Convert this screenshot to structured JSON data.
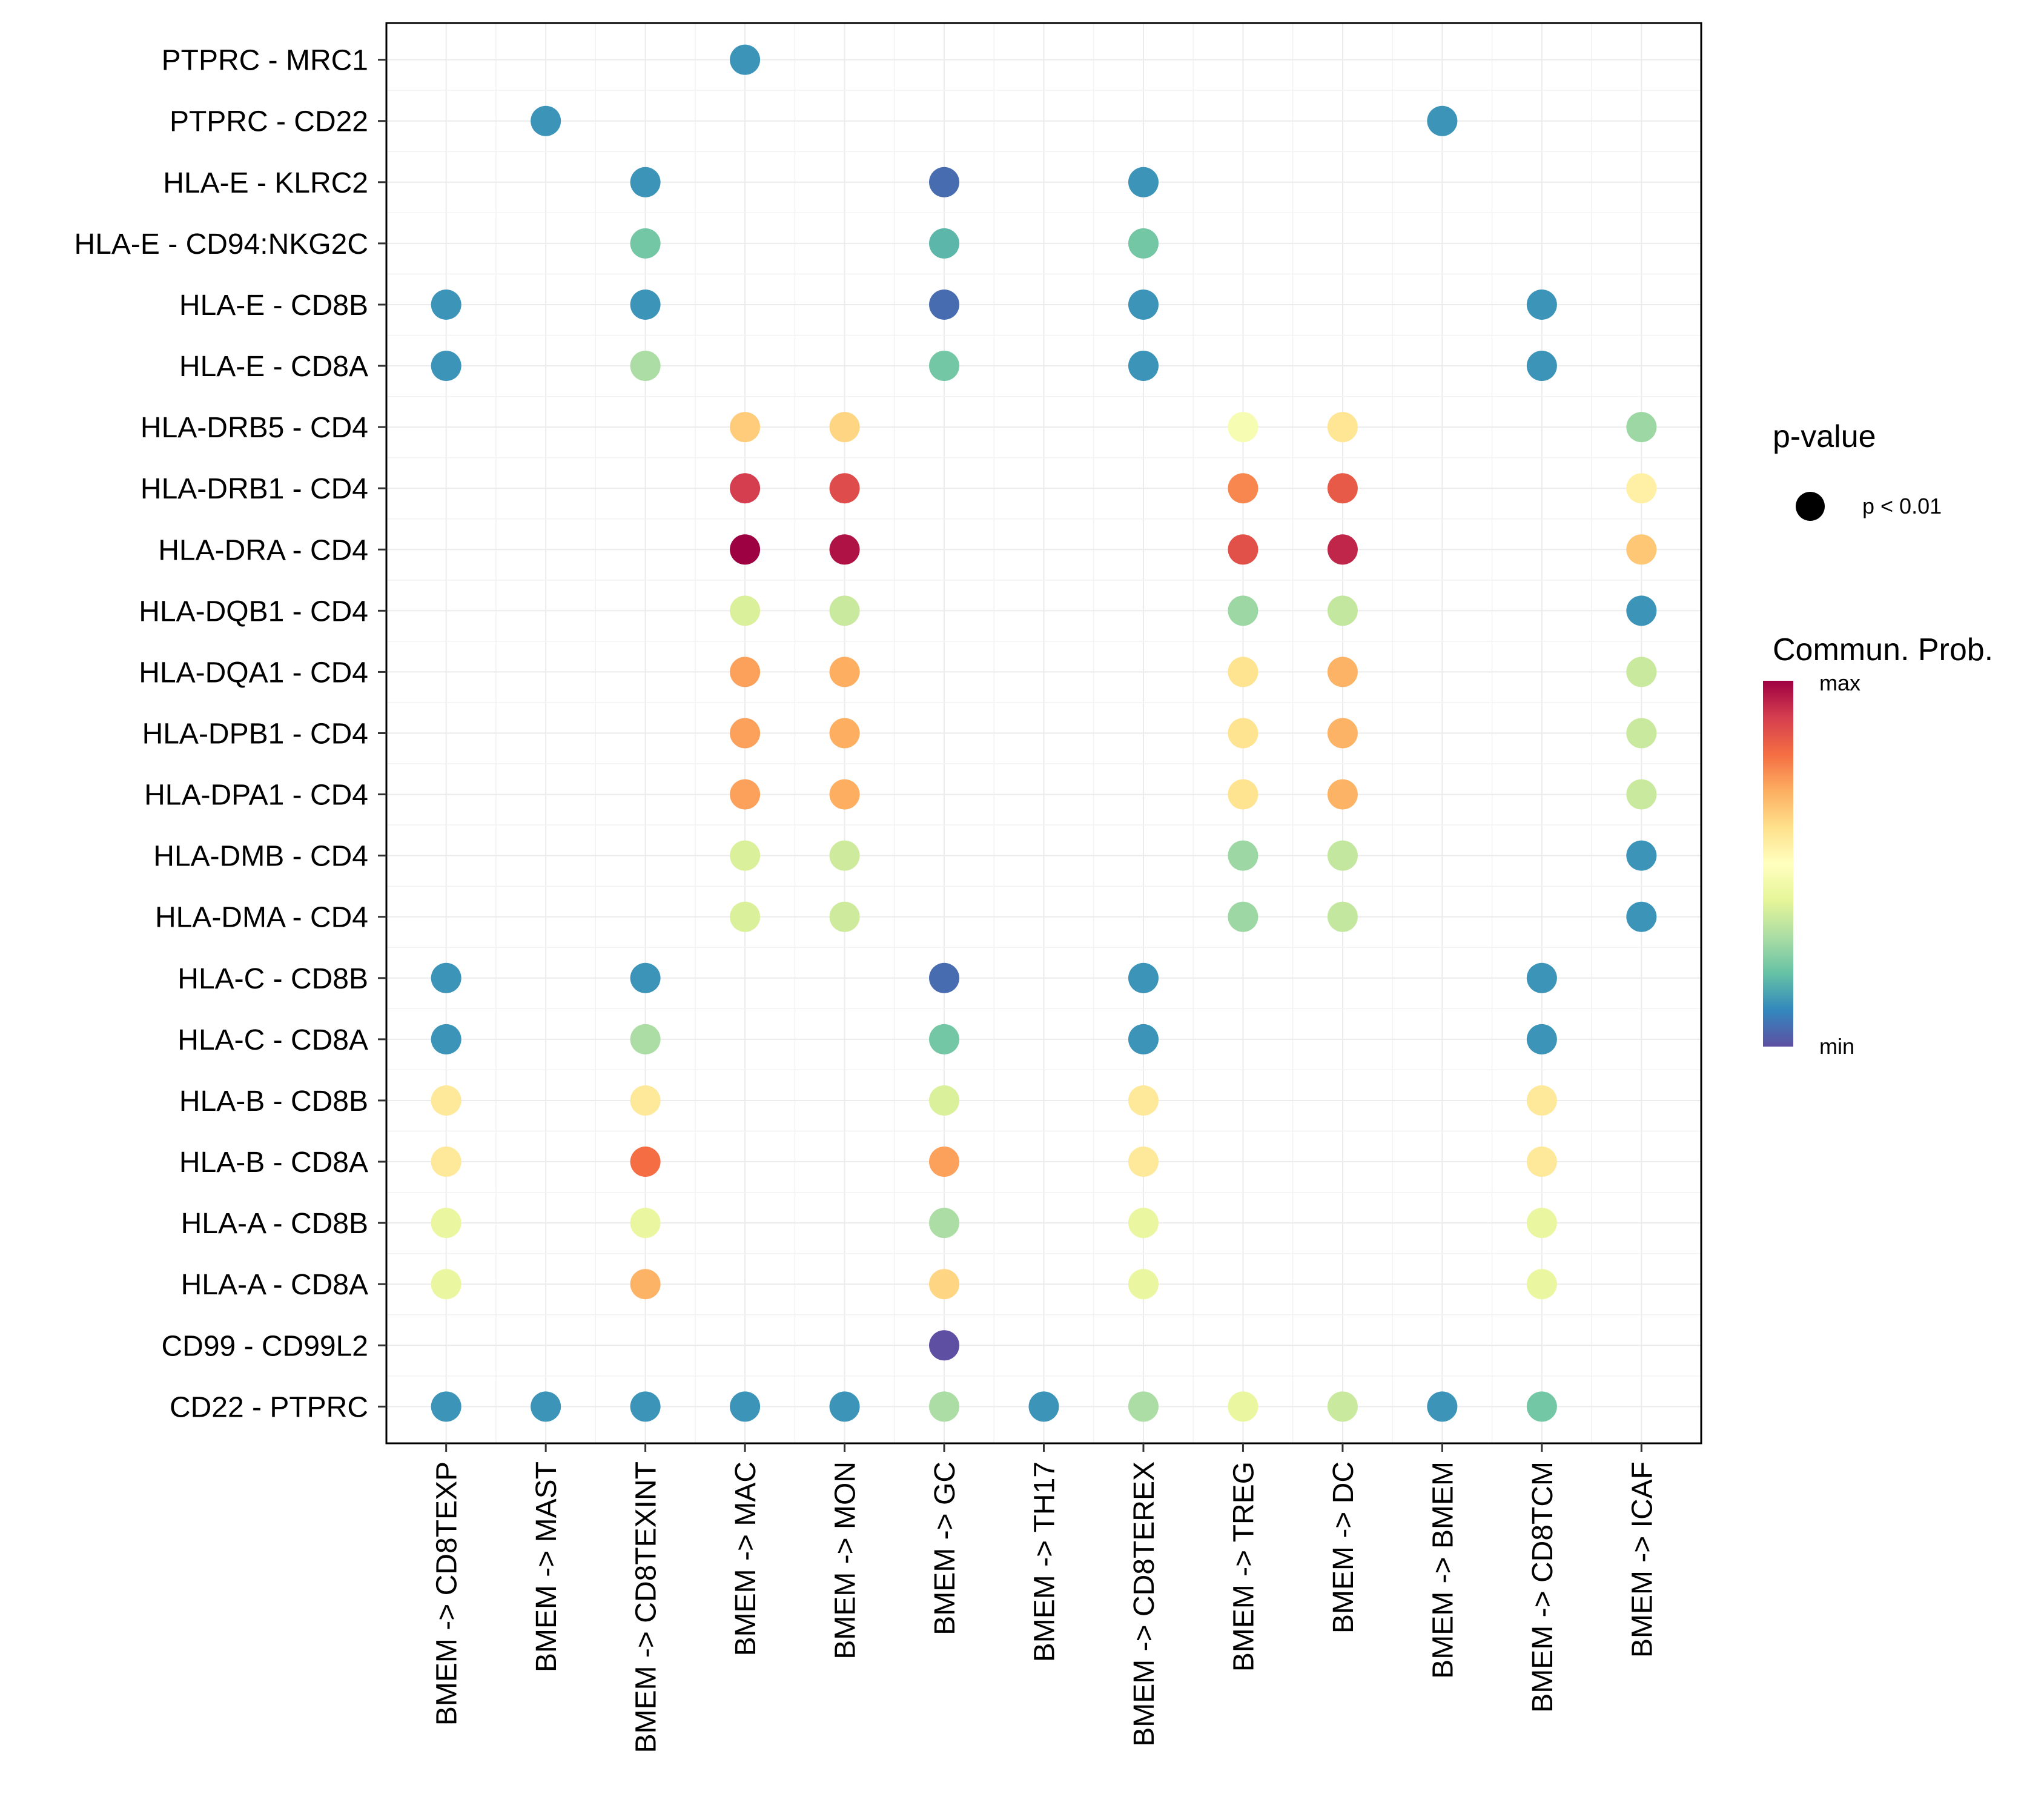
{
  "chart_data": {
    "type": "dotplot",
    "title": "",
    "xlabel": "",
    "ylabel": "",
    "x_categories": [
      "BMEM -> CD8TEXP",
      "BMEM -> MAST",
      "BMEM -> CD8TEXINT",
      "BMEM -> MAC",
      "BMEM -> MON",
      "BMEM -> GC",
      "BMEM -> TH17",
      "BMEM -> CD8TEREX",
      "BMEM -> TREG",
      "BMEM -> DC",
      "BMEM -> BMEM",
      "BMEM -> CD8TCM",
      "BMEM -> ICAF"
    ],
    "y_categories": [
      "PTPRC - MRC1",
      "PTPRC - CD22",
      "HLA-E - KLRC2",
      "HLA-E - CD94:NKG2C",
      "HLA-E - CD8B",
      "HLA-E - CD8A",
      "HLA-DRB5 - CD4",
      "HLA-DRB1 - CD4",
      "HLA-DRA - CD4",
      "HLA-DQB1 - CD4",
      "HLA-DQA1 - CD4",
      "HLA-DPB1 - CD4",
      "HLA-DPA1 - CD4",
      "HLA-DMB - CD4",
      "HLA-DMA - CD4",
      "HLA-C - CD8B",
      "HLA-C - CD8A",
      "HLA-B - CD8B",
      "HLA-B - CD8A",
      "HLA-A - CD8B",
      "HLA-A - CD8A",
      "CD99 - CD99L2",
      "CD22 - PTPRC"
    ],
    "value_scale": "normalized communication probability (0 = min, 1 = max)",
    "points": [
      {
        "y": "PTPRC - MRC1",
        "x": "BMEM -> MAC",
        "value": 0.12
      },
      {
        "y": "PTPRC - CD22",
        "x": "BMEM -> MAST",
        "value": 0.12
      },
      {
        "y": "PTPRC - CD22",
        "x": "BMEM -> BMEM",
        "value": 0.12
      },
      {
        "y": "HLA-E - KLRC2",
        "x": "BMEM -> CD8TEXINT",
        "value": 0.12
      },
      {
        "y": "HLA-E - KLRC2",
        "x": "BMEM -> GC",
        "value": 0.05
      },
      {
        "y": "HLA-E - KLRC2",
        "x": "BMEM -> CD8TEREX",
        "value": 0.12
      },
      {
        "y": "HLA-E - CD94:NKG2C",
        "x": "BMEM -> CD8TEXINT",
        "value": 0.22
      },
      {
        "y": "HLA-E - CD94:NKG2C",
        "x": "BMEM -> GC",
        "value": 0.18
      },
      {
        "y": "HLA-E - CD94:NKG2C",
        "x": "BMEM -> CD8TEREX",
        "value": 0.22
      },
      {
        "y": "HLA-E - CD8B",
        "x": "BMEM -> CD8TEXP",
        "value": 0.12
      },
      {
        "y": "HLA-E - CD8B",
        "x": "BMEM -> CD8TEXINT",
        "value": 0.12
      },
      {
        "y": "HLA-E - CD8B",
        "x": "BMEM -> GC",
        "value": 0.05
      },
      {
        "y": "HLA-E - CD8B",
        "x": "BMEM -> CD8TEREX",
        "value": 0.12
      },
      {
        "y": "HLA-E - CD8B",
        "x": "BMEM -> CD8TCM",
        "value": 0.12
      },
      {
        "y": "HLA-E - CD8A",
        "x": "BMEM -> CD8TEXP",
        "value": 0.12
      },
      {
        "y": "HLA-E - CD8A",
        "x": "BMEM -> CD8TEXINT",
        "value": 0.3
      },
      {
        "y": "HLA-E - CD8A",
        "x": "BMEM -> GC",
        "value": 0.22
      },
      {
        "y": "HLA-E - CD8A",
        "x": "BMEM -> CD8TEREX",
        "value": 0.12
      },
      {
        "y": "HLA-E - CD8A",
        "x": "BMEM -> CD8TCM",
        "value": 0.12
      },
      {
        "y": "HLA-DRB5 - CD4",
        "x": "BMEM -> MAC",
        "value": 0.64
      },
      {
        "y": "HLA-DRB5 - CD4",
        "x": "BMEM -> MON",
        "value": 0.62
      },
      {
        "y": "HLA-DRB5 - CD4",
        "x": "BMEM -> TREG",
        "value": 0.47
      },
      {
        "y": "HLA-DRB5 - CD4",
        "x": "BMEM -> DC",
        "value": 0.58
      },
      {
        "y": "HLA-DRB5 - CD4",
        "x": "BMEM -> ICAF",
        "value": 0.28
      },
      {
        "y": "HLA-DRB1 - CD4",
        "x": "BMEM -> MAC",
        "value": 0.9
      },
      {
        "y": "HLA-DRB1 - CD4",
        "x": "BMEM -> MON",
        "value": 0.87
      },
      {
        "y": "HLA-DRB1 - CD4",
        "x": "BMEM -> TREG",
        "value": 0.76
      },
      {
        "y": "HLA-DRB1 - CD4",
        "x": "BMEM -> DC",
        "value": 0.84
      },
      {
        "y": "HLA-DRB1 - CD4",
        "x": "BMEM -> ICAF",
        "value": 0.55
      },
      {
        "y": "HLA-DRA - CD4",
        "x": "BMEM -> MAC",
        "value": 1.0
      },
      {
        "y": "HLA-DRA - CD4",
        "x": "BMEM -> MON",
        "value": 0.97
      },
      {
        "y": "HLA-DRA - CD4",
        "x": "BMEM -> TREG",
        "value": 0.86
      },
      {
        "y": "HLA-DRA - CD4",
        "x": "BMEM -> DC",
        "value": 0.94
      },
      {
        "y": "HLA-DRA - CD4",
        "x": "BMEM -> ICAF",
        "value": 0.65
      },
      {
        "y": "HLA-DQB1 - CD4",
        "x": "BMEM -> MAC",
        "value": 0.38
      },
      {
        "y": "HLA-DQB1 - CD4",
        "x": "BMEM -> MON",
        "value": 0.35
      },
      {
        "y": "HLA-DQB1 - CD4",
        "x": "BMEM -> TREG",
        "value": 0.28
      },
      {
        "y": "HLA-DQB1 - CD4",
        "x": "BMEM -> DC",
        "value": 0.34
      },
      {
        "y": "HLA-DQB1 - CD4",
        "x": "BMEM -> ICAF",
        "value": 0.12
      },
      {
        "y": "HLA-DQA1 - CD4",
        "x": "BMEM -> MAC",
        "value": 0.72
      },
      {
        "y": "HLA-DQA1 - CD4",
        "x": "BMEM -> MON",
        "value": 0.7
      },
      {
        "y": "HLA-DQA1 - CD4",
        "x": "BMEM -> TREG",
        "value": 0.59
      },
      {
        "y": "HLA-DQA1 - CD4",
        "x": "BMEM -> DC",
        "value": 0.69
      },
      {
        "y": "HLA-DQA1 - CD4",
        "x": "BMEM -> ICAF",
        "value": 0.35
      },
      {
        "y": "HLA-DPB1 - CD4",
        "x": "BMEM -> MAC",
        "value": 0.72
      },
      {
        "y": "HLA-DPB1 - CD4",
        "x": "BMEM -> MON",
        "value": 0.7
      },
      {
        "y": "HLA-DPB1 - CD4",
        "x": "BMEM -> TREG",
        "value": 0.59
      },
      {
        "y": "HLA-DPB1 - CD4",
        "x": "BMEM -> DC",
        "value": 0.69
      },
      {
        "y": "HLA-DPB1 - CD4",
        "x": "BMEM -> ICAF",
        "value": 0.35
      },
      {
        "y": "HLA-DPA1 - CD4",
        "x": "BMEM -> MAC",
        "value": 0.72
      },
      {
        "y": "HLA-DPA1 - CD4",
        "x": "BMEM -> MON",
        "value": 0.7
      },
      {
        "y": "HLA-DPA1 - CD4",
        "x": "BMEM -> TREG",
        "value": 0.59
      },
      {
        "y": "HLA-DPA1 - CD4",
        "x": "BMEM -> DC",
        "value": 0.69
      },
      {
        "y": "HLA-DPA1 - CD4",
        "x": "BMEM -> ICAF",
        "value": 0.35
      },
      {
        "y": "HLA-DMB - CD4",
        "x": "BMEM -> MAC",
        "value": 0.38
      },
      {
        "y": "HLA-DMB - CD4",
        "x": "BMEM -> MON",
        "value": 0.36
      },
      {
        "y": "HLA-DMB - CD4",
        "x": "BMEM -> TREG",
        "value": 0.28
      },
      {
        "y": "HLA-DMB - CD4",
        "x": "BMEM -> DC",
        "value": 0.34
      },
      {
        "y": "HLA-DMB - CD4",
        "x": "BMEM -> ICAF",
        "value": 0.12
      },
      {
        "y": "HLA-DMA - CD4",
        "x": "BMEM -> MAC",
        "value": 0.38
      },
      {
        "y": "HLA-DMA - CD4",
        "x": "BMEM -> MON",
        "value": 0.36
      },
      {
        "y": "HLA-DMA - CD4",
        "x": "BMEM -> TREG",
        "value": 0.28
      },
      {
        "y": "HLA-DMA - CD4",
        "x": "BMEM -> DC",
        "value": 0.34
      },
      {
        "y": "HLA-DMA - CD4",
        "x": "BMEM -> ICAF",
        "value": 0.12
      },
      {
        "y": "HLA-C - CD8B",
        "x": "BMEM -> CD8TEXP",
        "value": 0.12
      },
      {
        "y": "HLA-C - CD8B",
        "x": "BMEM -> CD8TEXINT",
        "value": 0.12
      },
      {
        "y": "HLA-C - CD8B",
        "x": "BMEM -> GC",
        "value": 0.05
      },
      {
        "y": "HLA-C - CD8B",
        "x": "BMEM -> CD8TEREX",
        "value": 0.12
      },
      {
        "y": "HLA-C - CD8B",
        "x": "BMEM -> CD8TCM",
        "value": 0.12
      },
      {
        "y": "HLA-C - CD8A",
        "x": "BMEM -> CD8TEXP",
        "value": 0.12
      },
      {
        "y": "HLA-C - CD8A",
        "x": "BMEM -> CD8TEXINT",
        "value": 0.3
      },
      {
        "y": "HLA-C - CD8A",
        "x": "BMEM -> GC",
        "value": 0.22
      },
      {
        "y": "HLA-C - CD8A",
        "x": "BMEM -> CD8TEREX",
        "value": 0.12
      },
      {
        "y": "HLA-C - CD8A",
        "x": "BMEM -> CD8TCM",
        "value": 0.12
      },
      {
        "y": "HLA-B - CD8B",
        "x": "BMEM -> CD8TEXP",
        "value": 0.57
      },
      {
        "y": "HLA-B - CD8B",
        "x": "BMEM -> CD8TEXINT",
        "value": 0.57
      },
      {
        "y": "HLA-B - CD8B",
        "x": "BMEM -> GC",
        "value": 0.38
      },
      {
        "y": "HLA-B - CD8B",
        "x": "BMEM -> CD8TEREX",
        "value": 0.57
      },
      {
        "y": "HLA-B - CD8B",
        "x": "BMEM -> CD8TCM",
        "value": 0.57
      },
      {
        "y": "HLA-B - CD8A",
        "x": "BMEM -> CD8TEXP",
        "value": 0.57
      },
      {
        "y": "HLA-B - CD8A",
        "x": "BMEM -> CD8TEXINT",
        "value": 0.8
      },
      {
        "y": "HLA-B - CD8A",
        "x": "BMEM -> GC",
        "value": 0.72
      },
      {
        "y": "HLA-B - CD8A",
        "x": "BMEM -> CD8TEREX",
        "value": 0.57
      },
      {
        "y": "HLA-B - CD8A",
        "x": "BMEM -> CD8TCM",
        "value": 0.57
      },
      {
        "y": "HLA-A - CD8B",
        "x": "BMEM -> CD8TEXP",
        "value": 0.42
      },
      {
        "y": "HLA-A - CD8B",
        "x": "BMEM -> CD8TEXINT",
        "value": 0.42
      },
      {
        "y": "HLA-A - CD8B",
        "x": "BMEM -> GC",
        "value": 0.3
      },
      {
        "y": "HLA-A - CD8B",
        "x": "BMEM -> CD8TEREX",
        "value": 0.42
      },
      {
        "y": "HLA-A - CD8B",
        "x": "BMEM -> CD8TCM",
        "value": 0.42
      },
      {
        "y": "HLA-A - CD8A",
        "x": "BMEM -> CD8TEXP",
        "value": 0.42
      },
      {
        "y": "HLA-A - CD8A",
        "x": "BMEM -> CD8TEXINT",
        "value": 0.69
      },
      {
        "y": "HLA-A - CD8A",
        "x": "BMEM -> GC",
        "value": 0.62
      },
      {
        "y": "HLA-A - CD8A",
        "x": "BMEM -> CD8TEREX",
        "value": 0.42
      },
      {
        "y": "HLA-A - CD8A",
        "x": "BMEM -> CD8TCM",
        "value": 0.42
      },
      {
        "y": "CD99 - CD99L2",
        "x": "BMEM -> GC",
        "value": 0.0
      },
      {
        "y": "CD22 - PTPRC",
        "x": "BMEM -> CD8TEXP",
        "value": 0.12
      },
      {
        "y": "CD22 - PTPRC",
        "x": "BMEM -> MAST",
        "value": 0.12
      },
      {
        "y": "CD22 - PTPRC",
        "x": "BMEM -> CD8TEXINT",
        "value": 0.12
      },
      {
        "y": "CD22 - PTPRC",
        "x": "BMEM -> MAC",
        "value": 0.12
      },
      {
        "y": "CD22 - PTPRC",
        "x": "BMEM -> MON",
        "value": 0.12
      },
      {
        "y": "CD22 - PTPRC",
        "x": "BMEM -> GC",
        "value": 0.3
      },
      {
        "y": "CD22 - PTPRC",
        "x": "BMEM -> TH17",
        "value": 0.12
      },
      {
        "y": "CD22 - PTPRC",
        "x": "BMEM -> CD8TEREX",
        "value": 0.3
      },
      {
        "y": "CD22 - PTPRC",
        "x": "BMEM -> TREG",
        "value": 0.42
      },
      {
        "y": "CD22 - PTPRC",
        "x": "BMEM -> DC",
        "value": 0.35
      },
      {
        "y": "CD22 - PTPRC",
        "x": "BMEM -> BMEM",
        "value": 0.12
      },
      {
        "y": "CD22 - PTPRC",
        "x": "BMEM -> CD8TCM",
        "value": 0.22
      }
    ],
    "legend": {
      "size_title": "p-value",
      "size_entries": [
        "p < 0.01"
      ],
      "color_title": "Commun. Prob.",
      "color_max_label": "max",
      "color_min_label": "min",
      "color_palette": [
        "#5E4FA2",
        "#3288BD",
        "#66C2A5",
        "#ABDDA4",
        "#E6F598",
        "#FFFFBF",
        "#FEE08B",
        "#FDAE61",
        "#F46D43",
        "#D53E4F",
        "#9E0142"
      ],
      "position": "right"
    },
    "grid": true
  }
}
